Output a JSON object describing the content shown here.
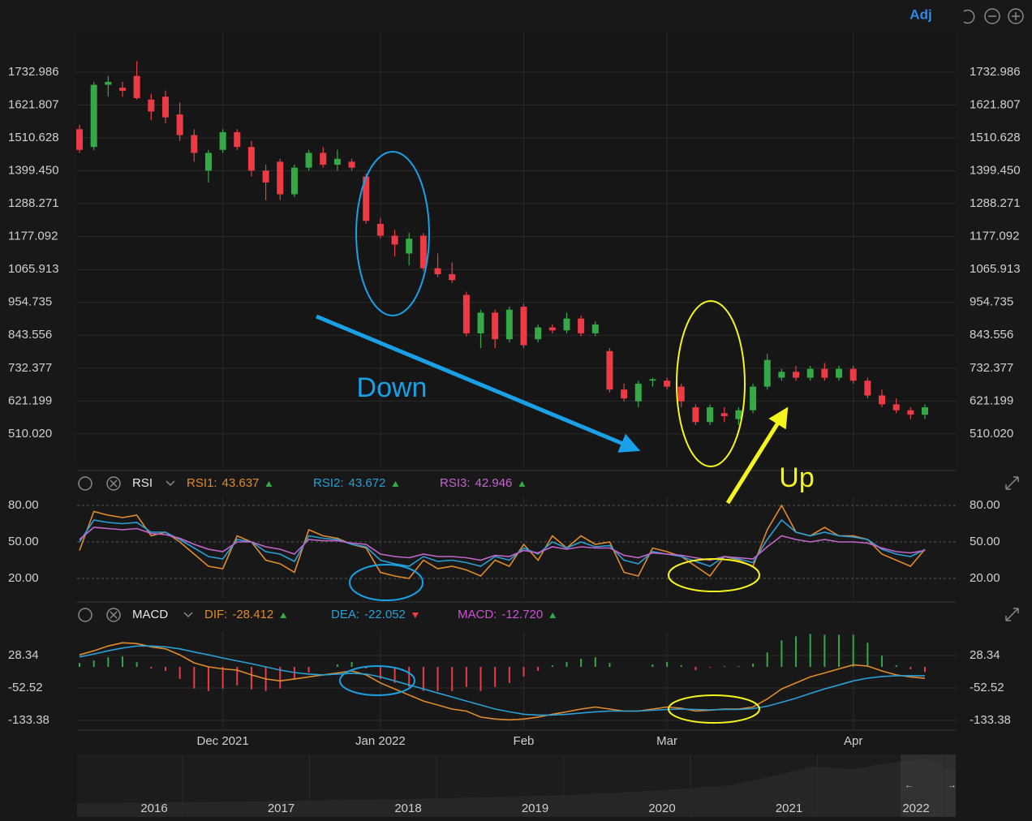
{
  "chart_data": [
    {
      "type": "candlestick",
      "adjust_label": "Adj",
      "categories": [
        null,
        null,
        null,
        null,
        null,
        null,
        null,
        null,
        null,
        null,
        "Dec 2021",
        null,
        null,
        null,
        null,
        null,
        null,
        null,
        null,
        null,
        null,
        "Jan 2022",
        null,
        null,
        null,
        null,
        null,
        null,
        null,
        null,
        null,
        "Feb",
        null,
        null,
        null,
        null,
        null,
        null,
        null,
        null,
        null,
        "Mar",
        null,
        null,
        null,
        null,
        null,
        null,
        null,
        null,
        null,
        null,
        null,
        null,
        "Apr",
        null,
        null,
        null,
        null,
        null
      ],
      "ohlc": [
        [
          1540,
          1555,
          1460,
          1470
        ],
        [
          1480,
          1700,
          1470,
          1690
        ],
        [
          1690,
          1720,
          1650,
          1700
        ],
        [
          1680,
          1700,
          1650,
          1670
        ],
        [
          1720,
          1770,
          1640,
          1645
        ],
        [
          1640,
          1660,
          1570,
          1600
        ],
        [
          1650,
          1670,
          1560,
          1580
        ],
        [
          1590,
          1630,
          1500,
          1520
        ],
        [
          1520,
          1540,
          1430,
          1460
        ],
        [
          1400,
          1470,
          1360,
          1460
        ],
        [
          1470,
          1540,
          1460,
          1530
        ],
        [
          1530,
          1540,
          1470,
          1480
        ],
        [
          1480,
          1500,
          1380,
          1400
        ],
        [
          1400,
          1420,
          1300,
          1360
        ],
        [
          1430,
          1440,
          1300,
          1320
        ],
        [
          1320,
          1420,
          1310,
          1410
        ],
        [
          1410,
          1470,
          1400,
          1460
        ],
        [
          1460,
          1480,
          1410,
          1420
        ],
        [
          1420,
          1470,
          1400,
          1440
        ],
        [
          1430,
          1440,
          1400,
          1410
        ],
        [
          1380,
          1390,
          1220,
          1230
        ],
        [
          1220,
          1240,
          1170,
          1180
        ],
        [
          1180,
          1200,
          1110,
          1150
        ],
        [
          1120,
          1190,
          1080,
          1170
        ],
        [
          1180,
          1190,
          1060,
          1070
        ],
        [
          1070,
          1120,
          1040,
          1050
        ],
        [
          1050,
          1090,
          1020,
          1030
        ],
        [
          980,
          990,
          840,
          850
        ],
        [
          850,
          930,
          800,
          920
        ],
        [
          920,
          930,
          800,
          830
        ],
        [
          830,
          940,
          820,
          930
        ],
        [
          940,
          950,
          800,
          810
        ],
        [
          830,
          880,
          820,
          870
        ],
        [
          870,
          880,
          850,
          860
        ],
        [
          860,
          920,
          850,
          900
        ],
        [
          900,
          910,
          840,
          850
        ],
        [
          850,
          890,
          840,
          880
        ],
        [
          790,
          800,
          650,
          660
        ],
        [
          660,
          680,
          620,
          630
        ],
        [
          620,
          690,
          600,
          680
        ],
        [
          690,
          700,
          670,
          695
        ],
        [
          690,
          700,
          660,
          670
        ],
        [
          670,
          680,
          600,
          620
        ],
        [
          600,
          610,
          540,
          550
        ],
        [
          550,
          610,
          540,
          600
        ],
        [
          580,
          600,
          550,
          570
        ],
        [
          560,
          600,
          540,
          590
        ],
        [
          590,
          680,
          580,
          670
        ],
        [
          670,
          780,
          660,
          760
        ],
        [
          700,
          730,
          690,
          720
        ],
        [
          720,
          740,
          690,
          700
        ],
        [
          700,
          740,
          690,
          730
        ],
        [
          730,
          750,
          690,
          700
        ],
        [
          700,
          740,
          690,
          730
        ],
        [
          730,
          740,
          680,
          690
        ],
        [
          690,
          700,
          630,
          640
        ],
        [
          640,
          660,
          600,
          610
        ],
        [
          610,
          630,
          580,
          590
        ],
        [
          590,
          600,
          560,
          575
        ],
        [
          575,
          610,
          560,
          600
        ]
      ],
      "up_color": "#35a847",
      "down_color": "#ec3b45",
      "ylim": [
        400,
        1867
      ],
      "yticks": [
        {
          "value": 510.02,
          "label": "510.020"
        },
        621.199,
        732.377,
        843.556,
        954.735,
        1065.913,
        1177.092,
        1288.271,
        {
          "value": 1399.45,
          "label": "1399.450"
        },
        1510.628,
        1621.807,
        1732.986
      ],
      "grid": true,
      "annotations": [
        "Down",
        "Up"
      ]
    },
    {
      "type": "line",
      "title": "RSI",
      "series": [
        {
          "name": "RSI1:",
          "color": "#e08b2c",
          "last": 43.637,
          "trend": "up",
          "values": [
            43,
            75,
            72,
            70,
            72,
            55,
            58,
            50,
            40,
            30,
            28,
            55,
            50,
            35,
            32,
            25,
            60,
            55,
            53,
            48,
            45,
            25,
            22,
            20,
            35,
            28,
            30,
            27,
            22,
            35,
            30,
            48,
            35,
            55,
            45,
            55,
            48,
            50,
            25,
            22,
            45,
            42,
            38,
            30,
            22,
            38,
            35,
            30,
            60,
            80,
            58,
            55,
            62,
            55,
            55,
            52,
            40,
            35,
            30,
            44
          ]
        },
        {
          "name": "RSI2:",
          "color": "#2a9fd6",
          "last": 43.672,
          "trend": "up",
          "values": [
            50,
            68,
            66,
            65,
            66,
            58,
            58,
            52,
            45,
            38,
            36,
            52,
            50,
            42,
            40,
            34,
            55,
            53,
            52,
            48,
            46,
            35,
            32,
            30,
            38,
            34,
            35,
            33,
            30,
            38,
            35,
            45,
            40,
            50,
            45,
            50,
            46,
            47,
            35,
            32,
            42,
            40,
            38,
            34,
            30,
            38,
            36,
            33,
            52,
            68,
            58,
            55,
            58,
            55,
            54,
            52,
            44,
            40,
            38,
            43.7
          ]
        },
        {
          "name": "RSI3:",
          "color": "#c466cc",
          "last": 42.946,
          "trend": "up",
          "values": [
            52,
            62,
            61,
            60,
            61,
            57,
            56,
            53,
            48,
            44,
            42,
            50,
            50,
            46,
            44,
            40,
            52,
            51,
            51,
            49,
            48,
            40,
            38,
            37,
            40,
            38,
            38,
            37,
            35,
            39,
            38,
            43,
            41,
            46,
            44,
            46,
            45,
            45,
            39,
            37,
            41,
            40,
            39,
            37,
            35,
            38,
            37,
            36,
            46,
            55,
            52,
            50,
            52,
            50,
            50,
            49,
            45,
            42,
            41,
            42.9
          ]
        }
      ],
      "ylim": [
        4,
        87.3
      ],
      "yticks": [
        {
          "value": 20,
          "label": "20.00"
        },
        {
          "value": 50,
          "label": "50.00"
        },
        {
          "value": 80,
          "label": "80.00"
        }
      ]
    },
    {
      "type": "macd",
      "title": "MACD",
      "series": [
        {
          "name": "DIF:",
          "type": "line",
          "color": "#e08b2c",
          "last": -28.412,
          "trend": "up",
          "values": [
            30,
            40,
            52,
            60,
            58,
            50,
            45,
            30,
            10,
            0,
            -5,
            -8,
            -20,
            -30,
            -35,
            -30,
            -25,
            -20,
            -15,
            -10,
            -20,
            -40,
            -55,
            -70,
            -85,
            -95,
            -105,
            -110,
            -125,
            -130,
            -132,
            -130,
            -125,
            -118,
            -112,
            -105,
            -100,
            -105,
            -110,
            -110,
            -105,
            -100,
            -103,
            -110,
            -108,
            -105,
            -105,
            -100,
            -80,
            -55,
            -40,
            -25,
            -15,
            -5,
            5,
            2,
            -10,
            -20,
            -25,
            -28.412
          ]
        },
        {
          "name": "DEA:",
          "type": "line",
          "color": "#2a9fd6",
          "last": -22.052,
          "trend": "down",
          "values": [
            25,
            32,
            40,
            47,
            52,
            52,
            50,
            45,
            37,
            30,
            22,
            15,
            8,
            0,
            -8,
            -14,
            -18,
            -20,
            -18,
            -16,
            -18,
            -25,
            -35,
            -45,
            -55,
            -65,
            -75,
            -85,
            -95,
            -105,
            -112,
            -118,
            -120,
            -120,
            -118,
            -115,
            -112,
            -110,
            -110,
            -110,
            -108,
            -106,
            -105,
            -106,
            -107,
            -106,
            -106,
            -104,
            -98,
            -88,
            -78,
            -66,
            -55,
            -45,
            -35,
            -28,
            -24,
            -22,
            -22,
            -22.052
          ]
        },
        {
          "name": "MACD:",
          "type": "bar",
          "color": "#d04fd8",
          "up_color": "#35a847",
          "down_color": "#ec3b45",
          "last": {
            "value": -12.72,
            "label": "-12.720"
          },
          "trend": "up",
          "values": [
            10,
            16,
            24,
            26,
            12,
            -4,
            -10,
            -30,
            -54,
            -60,
            -54,
            -46,
            -56,
            -60,
            -54,
            -32,
            -14,
            0,
            6,
            12,
            -4,
            -30,
            -40,
            -50,
            -60,
            -60,
            -60,
            -50,
            -60,
            -50,
            -40,
            -24,
            -10,
            4,
            12,
            20,
            24,
            10,
            0,
            0,
            6,
            12,
            4,
            -8,
            -2,
            2,
            2,
            8,
            36,
            66,
            76,
            82,
            80,
            80,
            80,
            60,
            28,
            4,
            -6,
            -12.72
          ]
        }
      ],
      "ylim": [
        -157.6,
        89
      ],
      "yticks": [
        -133.38,
        -52.52,
        28.34
      ]
    },
    {
      "type": "navigator",
      "labels": [
        "2016",
        "2017",
        "2018",
        "2019",
        "2020",
        "2021",
        "2022"
      ]
    }
  ]
}
